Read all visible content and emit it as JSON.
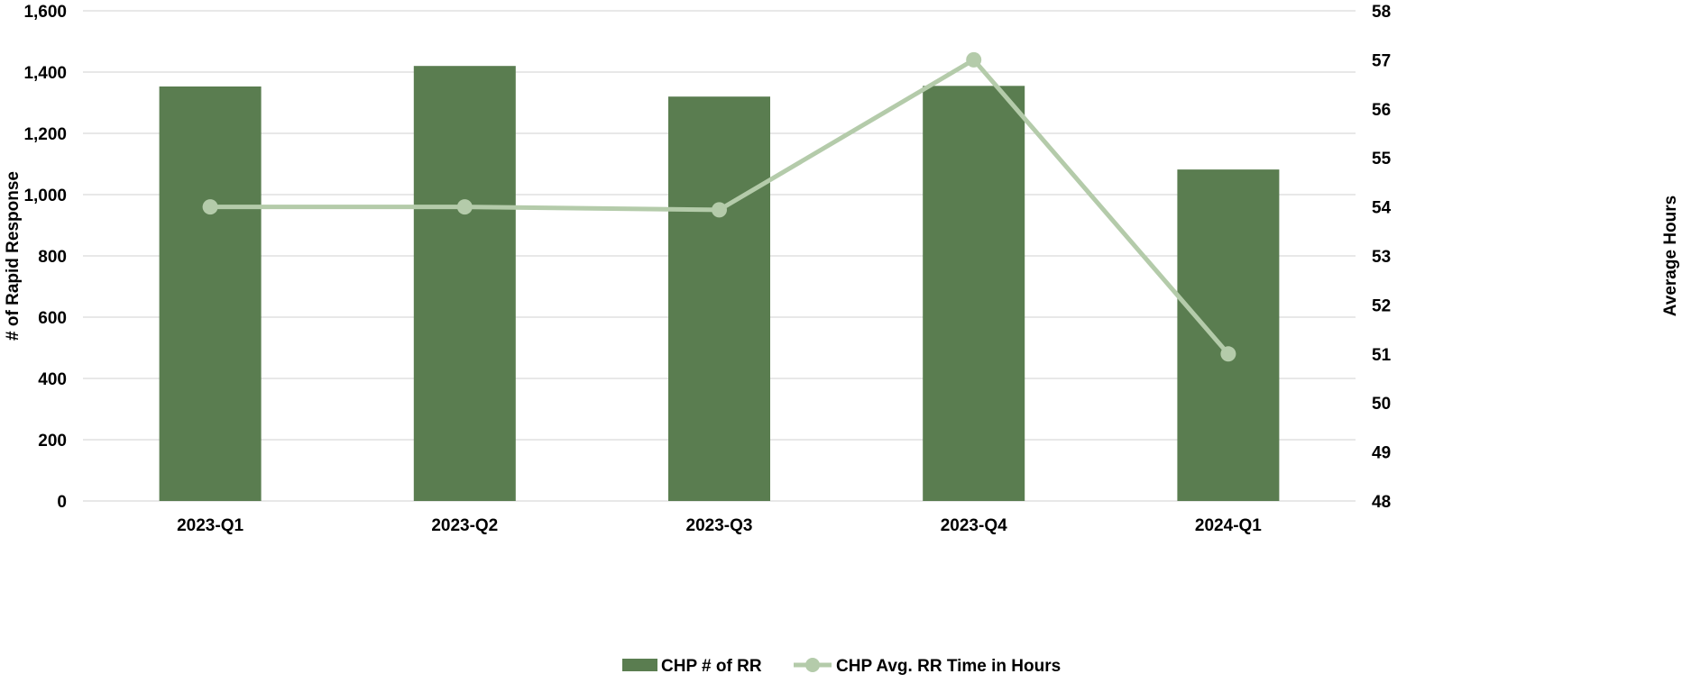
{
  "chart_data": {
    "type": "bar",
    "categories": [
      "2023-Q1",
      "2023-Q2",
      "2023-Q3",
      "2023-Q4",
      "2024-Q1"
    ],
    "series": [
      {
        "name": "CHP # of RR",
        "type": "bar",
        "axis": "left",
        "color": "#5a7d50",
        "values": [
          1353,
          1420,
          1320,
          1355,
          1082
        ]
      },
      {
        "name": "CHP Avg. RR Time in Hours",
        "type": "line",
        "axis": "right",
        "color": "#b4cbaa",
        "values": [
          54.0,
          54.0,
          53.94,
          57.0,
          51.0
        ]
      }
    ],
    "ylabel": "# of Rapid Response",
    "y2label": "Average Hours",
    "ylim": [
      0,
      1600
    ],
    "y2lim": [
      48,
      58
    ],
    "yticks": [
      "0",
      "200",
      "400",
      "600",
      "800",
      "1,000",
      "1,200",
      "1,400",
      "1,600"
    ],
    "y2ticks": [
      "48",
      "49",
      "50",
      "51",
      "52",
      "53",
      "54",
      "55",
      "56",
      "57",
      "58"
    ],
    "grid": true,
    "legend": "bottom"
  }
}
